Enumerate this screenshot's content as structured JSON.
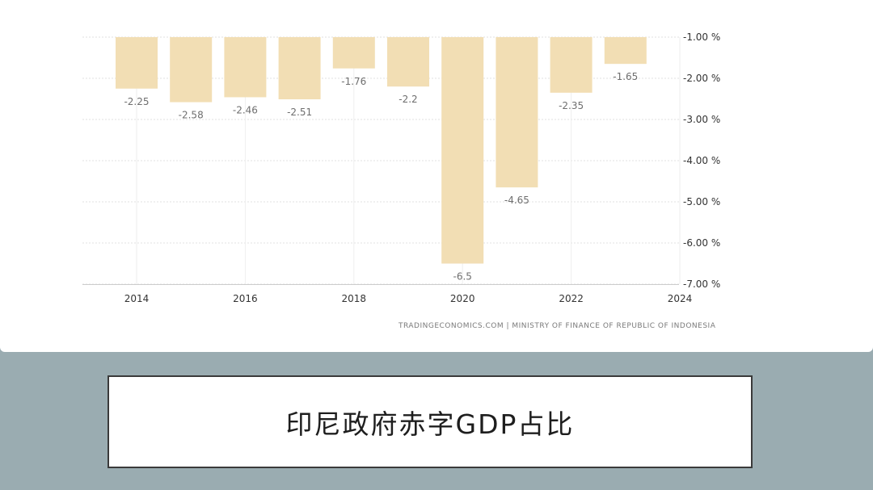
{
  "chart_data": {
    "type": "bar",
    "title": "印尼政府赤字GDP占比",
    "source": "TRADINGECONOMICS.COM | MINISTRY OF FINANCE OF REPUBLIC OF INDONESIA",
    "categories": [
      "2014",
      "2015",
      "2016",
      "2017",
      "2018",
      "2019",
      "2020",
      "2021",
      "2022",
      "2023"
    ],
    "values": [
      -2.25,
      -2.58,
      -2.46,
      -2.51,
      -1.76,
      -2.2,
      -6.5,
      -4.65,
      -2.35,
      -1.65
    ],
    "data_labels": [
      "-2.25",
      "-2.58",
      "-2.46",
      "-2.51",
      "-1.76",
      "-2.2",
      "-6.5",
      "-4.65",
      "-2.35",
      "-1.65"
    ],
    "x_ticks": [
      "2014",
      "2016",
      "2018",
      "2020",
      "2022",
      "2024"
    ],
    "y_ticks": [
      "-1.00 %",
      "-2.00 %",
      "-3.00 %",
      "-4.00 %",
      "-5.00 %",
      "-6.00 %",
      "-7.00 %"
    ],
    "y_tick_values": [
      -1,
      -2,
      -3,
      -4,
      -5,
      -6,
      -7
    ],
    "ylim": [
      -7,
      -1
    ],
    "xlim": [
      2013,
      2024
    ],
    "grid": true,
    "y_axis_position": "right",
    "bar_color": "#f2deb4",
    "label_color": "#6e6e6e",
    "grid_color": "#e2e2e2"
  }
}
